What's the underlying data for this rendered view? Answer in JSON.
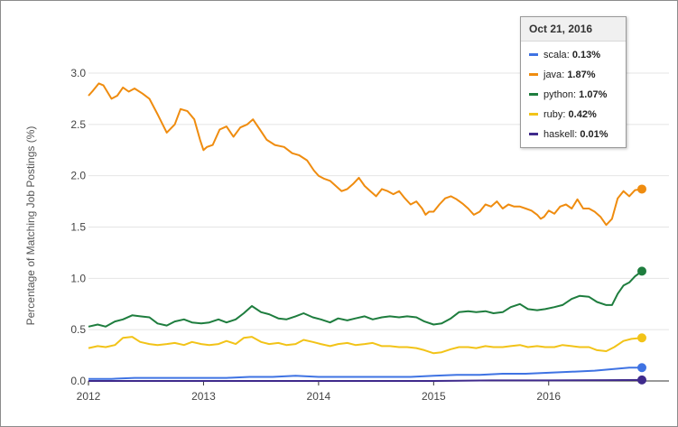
{
  "chart_data": {
    "type": "line",
    "title": "",
    "xlabel": "",
    "ylabel": "Percentage of Matching Job Postings (%)",
    "xlim": [
      2012.0,
      2016.81
    ],
    "ylim": [
      0,
      3.0
    ],
    "x_ticks": [
      "2012",
      "2013",
      "2014",
      "2015",
      "2016"
    ],
    "x_tick_values": [
      2012,
      2013,
      2014,
      2015,
      2016
    ],
    "y_ticks": [
      "0.0",
      "0.5",
      "1.0",
      "1.5",
      "2.0",
      "2.5",
      "3.0"
    ],
    "y_tick_values": [
      0,
      0.5,
      1.0,
      1.5,
      2.0,
      2.5,
      3.0
    ],
    "grid": "horizontal",
    "series": [
      {
        "name": "scala",
        "color": "#3f73e3",
        "x": [
          2012.0,
          2012.2,
          2012.4,
          2012.6,
          2012.8,
          2013.0,
          2013.2,
          2013.4,
          2013.6,
          2013.8,
          2014.0,
          2014.2,
          2014.4,
          2014.6,
          2014.8,
          2015.0,
          2015.2,
          2015.4,
          2015.6,
          2015.8,
          2016.0,
          2016.2,
          2016.4,
          2016.6,
          2016.7,
          2016.81
        ],
        "y": [
          0.02,
          0.02,
          0.03,
          0.03,
          0.03,
          0.03,
          0.03,
          0.04,
          0.04,
          0.05,
          0.04,
          0.04,
          0.04,
          0.04,
          0.04,
          0.05,
          0.06,
          0.06,
          0.07,
          0.07,
          0.08,
          0.09,
          0.1,
          0.12,
          0.13,
          0.13
        ]
      },
      {
        "name": "java",
        "color": "#ef8c0f",
        "x": [
          2012.0,
          2012.04,
          2012.09,
          2012.13,
          2012.2,
          2012.25,
          2012.3,
          2012.35,
          2012.4,
          2012.47,
          2012.53,
          2012.6,
          2012.68,
          2012.75,
          2012.8,
          2012.86,
          2012.92,
          2012.97,
          2013.0,
          2013.03,
          2013.08,
          2013.14,
          2013.2,
          2013.26,
          2013.32,
          2013.38,
          2013.43,
          2013.49,
          2013.55,
          2013.62,
          2013.7,
          2013.77,
          2013.83,
          2013.9,
          2013.96,
          2014.0,
          2014.05,
          2014.1,
          2014.15,
          2014.2,
          2014.25,
          2014.3,
          2014.35,
          2014.4,
          2014.45,
          2014.5,
          2014.55,
          2014.6,
          2014.65,
          2014.7,
          2014.75,
          2014.8,
          2014.85,
          2014.9,
          2014.93,
          2014.96,
          2015.0,
          2015.05,
          2015.1,
          2015.15,
          2015.2,
          2015.25,
          2015.3,
          2015.35,
          2015.4,
          2015.45,
          2015.5,
          2015.55,
          2015.6,
          2015.65,
          2015.7,
          2015.75,
          2015.8,
          2015.85,
          2015.9,
          2015.93,
          2015.96,
          2016.0,
          2016.05,
          2016.1,
          2016.15,
          2016.2,
          2016.25,
          2016.3,
          2016.35,
          2016.4,
          2016.45,
          2016.5,
          2016.55,
          2016.6,
          2016.65,
          2016.7,
          2016.75,
          2016.81
        ],
        "y": [
          2.78,
          2.83,
          2.9,
          2.88,
          2.75,
          2.78,
          2.86,
          2.82,
          2.85,
          2.8,
          2.75,
          2.6,
          2.42,
          2.5,
          2.65,
          2.63,
          2.55,
          2.35,
          2.25,
          2.28,
          2.3,
          2.45,
          2.48,
          2.38,
          2.47,
          2.5,
          2.55,
          2.45,
          2.35,
          2.3,
          2.28,
          2.22,
          2.2,
          2.15,
          2.05,
          2.0,
          1.97,
          1.95,
          1.9,
          1.85,
          1.87,
          1.92,
          1.98,
          1.9,
          1.85,
          1.8,
          1.87,
          1.85,
          1.82,
          1.85,
          1.78,
          1.72,
          1.75,
          1.68,
          1.62,
          1.65,
          1.65,
          1.72,
          1.78,
          1.8,
          1.77,
          1.73,
          1.68,
          1.62,
          1.65,
          1.72,
          1.7,
          1.75,
          1.68,
          1.72,
          1.7,
          1.7,
          1.68,
          1.66,
          1.62,
          1.58,
          1.6,
          1.66,
          1.63,
          1.7,
          1.72,
          1.68,
          1.77,
          1.68,
          1.68,
          1.65,
          1.6,
          1.52,
          1.58,
          1.78,
          1.85,
          1.8,
          1.86,
          1.87
        ]
      },
      {
        "name": "python",
        "color": "#1e7d3e",
        "x": [
          2012.0,
          2012.08,
          2012.15,
          2012.23,
          2012.3,
          2012.38,
          2012.45,
          2012.53,
          2012.6,
          2012.68,
          2012.75,
          2012.83,
          2012.9,
          2012.98,
          2013.05,
          2013.13,
          2013.2,
          2013.28,
          2013.35,
          2013.42,
          2013.5,
          2013.57,
          2013.65,
          2013.72,
          2013.8,
          2013.87,
          2013.95,
          2014.02,
          2014.1,
          2014.17,
          2014.25,
          2014.32,
          2014.4,
          2014.47,
          2014.55,
          2014.62,
          2014.7,
          2014.77,
          2014.85,
          2014.92,
          2015.0,
          2015.07,
          2015.15,
          2015.22,
          2015.3,
          2015.37,
          2015.45,
          2015.52,
          2015.6,
          2015.67,
          2015.75,
          2015.82,
          2015.9,
          2015.97,
          2016.05,
          2016.12,
          2016.2,
          2016.27,
          2016.35,
          2016.42,
          2016.5,
          2016.55,
          2016.6,
          2016.65,
          2016.7,
          2016.75,
          2016.81
        ],
        "y": [
          0.53,
          0.55,
          0.53,
          0.58,
          0.6,
          0.64,
          0.63,
          0.62,
          0.56,
          0.54,
          0.58,
          0.6,
          0.57,
          0.56,
          0.57,
          0.6,
          0.57,
          0.6,
          0.66,
          0.73,
          0.67,
          0.65,
          0.61,
          0.6,
          0.63,
          0.66,
          0.62,
          0.6,
          0.57,
          0.61,
          0.59,
          0.61,
          0.63,
          0.6,
          0.62,
          0.63,
          0.62,
          0.63,
          0.62,
          0.58,
          0.55,
          0.56,
          0.61,
          0.67,
          0.68,
          0.67,
          0.68,
          0.66,
          0.67,
          0.72,
          0.75,
          0.7,
          0.69,
          0.7,
          0.72,
          0.74,
          0.8,
          0.83,
          0.82,
          0.77,
          0.74,
          0.74,
          0.85,
          0.93,
          0.96,
          1.02,
          1.07
        ]
      },
      {
        "name": "ruby",
        "color": "#f2c318",
        "x": [
          2012.0,
          2012.08,
          2012.15,
          2012.23,
          2012.3,
          2012.38,
          2012.45,
          2012.53,
          2012.6,
          2012.68,
          2012.75,
          2012.83,
          2012.9,
          2012.98,
          2013.05,
          2013.13,
          2013.2,
          2013.28,
          2013.35,
          2013.42,
          2013.5,
          2013.57,
          2013.65,
          2013.72,
          2013.8,
          2013.87,
          2013.95,
          2014.02,
          2014.1,
          2014.17,
          2014.25,
          2014.32,
          2014.4,
          2014.47,
          2014.55,
          2014.62,
          2014.7,
          2014.77,
          2014.85,
          2014.92,
          2015.0,
          2015.07,
          2015.15,
          2015.22,
          2015.3,
          2015.37,
          2015.45,
          2015.52,
          2015.6,
          2015.67,
          2015.75,
          2015.82,
          2015.9,
          2015.97,
          2016.05,
          2016.12,
          2016.2,
          2016.27,
          2016.35,
          2016.42,
          2016.5,
          2016.57,
          2016.65,
          2016.72,
          2016.81
        ],
        "y": [
          0.32,
          0.34,
          0.33,
          0.35,
          0.42,
          0.43,
          0.38,
          0.36,
          0.35,
          0.36,
          0.37,
          0.35,
          0.38,
          0.36,
          0.35,
          0.36,
          0.39,
          0.36,
          0.42,
          0.43,
          0.38,
          0.36,
          0.37,
          0.35,
          0.36,
          0.4,
          0.38,
          0.36,
          0.34,
          0.36,
          0.37,
          0.35,
          0.36,
          0.37,
          0.34,
          0.34,
          0.33,
          0.33,
          0.32,
          0.3,
          0.27,
          0.28,
          0.31,
          0.33,
          0.33,
          0.32,
          0.34,
          0.33,
          0.33,
          0.34,
          0.35,
          0.33,
          0.34,
          0.33,
          0.33,
          0.35,
          0.34,
          0.33,
          0.33,
          0.3,
          0.29,
          0.33,
          0.39,
          0.41,
          0.42
        ]
      },
      {
        "name": "haskell",
        "color": "#3f2a8c",
        "x": [
          2012.0,
          2012.5,
          2013.0,
          2013.5,
          2014.0,
          2014.5,
          2015.0,
          2015.5,
          2016.0,
          2016.5,
          2016.81
        ],
        "y": [
          0.0,
          0.0,
          0.0,
          0.0,
          0.0,
          0.0,
          0.0,
          0.005,
          0.005,
          0.008,
          0.01
        ]
      }
    ],
    "tooltip": {
      "date": "Oct 21, 2016",
      "entries": [
        {
          "name": "scala",
          "value": "0.13%",
          "color": "#3f73e3"
        },
        {
          "name": "java",
          "value": "1.87%",
          "color": "#ef8c0f"
        },
        {
          "name": "python",
          "value": "1.07%",
          "color": "#1e7d3e"
        },
        {
          "name": "ruby",
          "value": "0.42%",
          "color": "#f2c318"
        },
        {
          "name": "haskell",
          "value": "0.01%",
          "color": "#3f2a8c"
        }
      ]
    }
  }
}
